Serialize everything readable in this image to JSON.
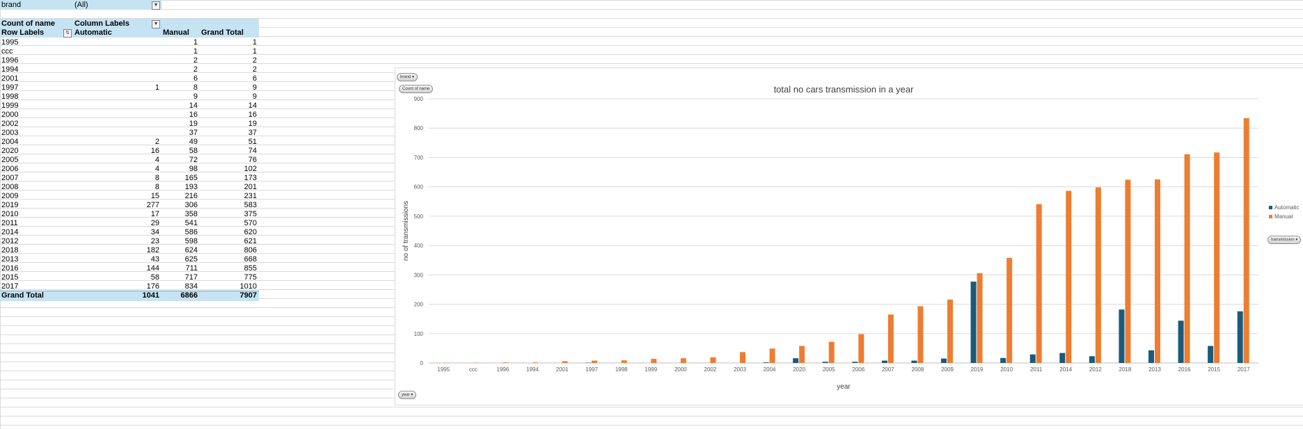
{
  "colors": {
    "automatic": "#1b5a7a",
    "manual": "#ed7d31",
    "header_fill": "#c5e3f2"
  },
  "pivot": {
    "filter_label": "brand",
    "filter_value": "(All)",
    "count_label": "Count of name",
    "column_labels": "Column Labels",
    "row_labels": "Row Labels",
    "col_automatic": "Automatic",
    "col_manual": "Manual",
    "col_grand_total": "Grand Total",
    "rows": [
      {
        "label": "1995",
        "automatic": "",
        "manual": "1",
        "total": "1"
      },
      {
        "label": "ccc",
        "automatic": "",
        "manual": "1",
        "total": "1"
      },
      {
        "label": "1996",
        "automatic": "",
        "manual": "2",
        "total": "2"
      },
      {
        "label": "1994",
        "automatic": "",
        "manual": "2",
        "total": "2"
      },
      {
        "label": "2001",
        "automatic": "",
        "manual": "6",
        "total": "6"
      },
      {
        "label": "1997",
        "automatic": "1",
        "manual": "8",
        "total": "9"
      },
      {
        "label": "1998",
        "automatic": "",
        "manual": "9",
        "total": "9"
      },
      {
        "label": "1999",
        "automatic": "",
        "manual": "14",
        "total": "14"
      },
      {
        "label": "2000",
        "automatic": "",
        "manual": "16",
        "total": "16"
      },
      {
        "label": "2002",
        "automatic": "",
        "manual": "19",
        "total": "19"
      },
      {
        "label": "2003",
        "automatic": "",
        "manual": "37",
        "total": "37"
      },
      {
        "label": "2004",
        "automatic": "2",
        "manual": "49",
        "total": "51"
      },
      {
        "label": "2020",
        "automatic": "16",
        "manual": "58",
        "total": "74"
      },
      {
        "label": "2005",
        "automatic": "4",
        "manual": "72",
        "total": "76"
      },
      {
        "label": "2006",
        "automatic": "4",
        "manual": "98",
        "total": "102"
      },
      {
        "label": "2007",
        "automatic": "8",
        "manual": "165",
        "total": "173"
      },
      {
        "label": "2008",
        "automatic": "8",
        "manual": "193",
        "total": "201"
      },
      {
        "label": "2009",
        "automatic": "15",
        "manual": "216",
        "total": "231"
      },
      {
        "label": "2019",
        "automatic": "277",
        "manual": "306",
        "total": "583"
      },
      {
        "label": "2010",
        "automatic": "17",
        "manual": "358",
        "total": "375"
      },
      {
        "label": "2011",
        "automatic": "29",
        "manual": "541",
        "total": "570"
      },
      {
        "label": "2014",
        "automatic": "34",
        "manual": "586",
        "total": "620"
      },
      {
        "label": "2012",
        "automatic": "23",
        "manual": "598",
        "total": "621"
      },
      {
        "label": "2018",
        "automatic": "182",
        "manual": "624",
        "total": "806"
      },
      {
        "label": "2013",
        "automatic": "43",
        "manual": "625",
        "total": "668"
      },
      {
        "label": "2016",
        "automatic": "144",
        "manual": "711",
        "total": "855"
      },
      {
        "label": "2015",
        "automatic": "58",
        "manual": "717",
        "total": "775"
      },
      {
        "label": "2017",
        "automatic": "176",
        "manual": "834",
        "total": "1010"
      }
    ],
    "grand_total_label": "Grand Total",
    "grand_total_automatic": "1041",
    "grand_total_manual": "6866",
    "grand_total_total": "7907"
  },
  "chart_buttons": {
    "brand": "brand",
    "count": "Count of name",
    "transmission": "transmission",
    "year": "year"
  },
  "chart_data": {
    "type": "bar",
    "title": "total no cars  transmission in  a year",
    "xlabel": "year",
    "ylabel": "no of transmissions",
    "ylim": [
      0,
      900
    ],
    "yticks": [
      0,
      100,
      200,
      300,
      400,
      500,
      600,
      700,
      800,
      900
    ],
    "legend_position": "right",
    "grid": true,
    "categories": [
      "1995",
      "ccc",
      "1996",
      "1994",
      "2001",
      "1997",
      "1998",
      "1999",
      "2000",
      "2002",
      "2003",
      "2004",
      "2020",
      "2005",
      "2006",
      "2007",
      "2008",
      "2009",
      "2019",
      "2010",
      "2011",
      "2014",
      "2012",
      "2018",
      "2013",
      "2016",
      "2015",
      "2017"
    ],
    "series": [
      {
        "name": "Automatic",
        "color": "#1b5a7a",
        "values": [
          0,
          0,
          0,
          0,
          0,
          1,
          0,
          0,
          0,
          0,
          0,
          2,
          16,
          4,
          4,
          8,
          8,
          15,
          277,
          17,
          29,
          34,
          23,
          182,
          43,
          144,
          58,
          176
        ]
      },
      {
        "name": "Manual",
        "color": "#ed7d31",
        "values": [
          1,
          1,
          2,
          2,
          6,
          8,
          9,
          14,
          16,
          19,
          37,
          49,
          58,
          72,
          98,
          165,
          193,
          216,
          306,
          358,
          541,
          586,
          598,
          624,
          625,
          711,
          717,
          834
        ]
      }
    ]
  }
}
